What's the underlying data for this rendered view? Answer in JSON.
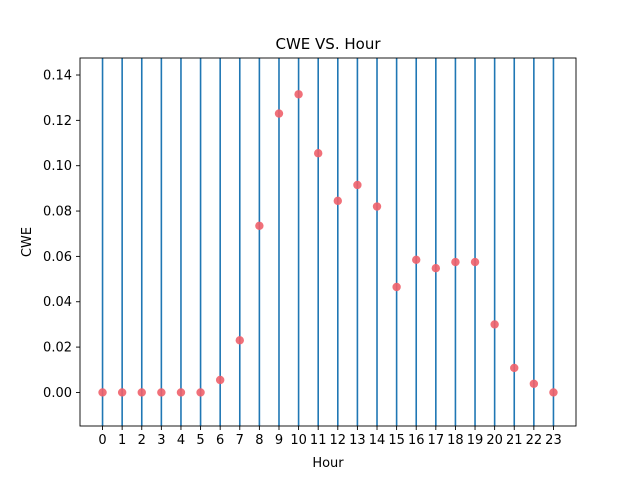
{
  "chart_data": {
    "type": "scatter",
    "title": "CWE VS. Hour",
    "xlabel": "Hour",
    "ylabel": "CWE",
    "x": [
      0,
      1,
      2,
      3,
      4,
      5,
      6,
      7,
      8,
      9,
      10,
      11,
      12,
      13,
      14,
      15,
      16,
      17,
      18,
      19,
      20,
      21,
      22,
      23
    ],
    "y": [
      0.0,
      0.0,
      0.0,
      0.0,
      0.0,
      0.0,
      0.0055,
      0.023,
      0.0735,
      0.123,
      0.1315,
      0.1055,
      0.0845,
      0.0915,
      0.082,
      0.0465,
      0.0585,
      0.0548,
      0.0575,
      0.0575,
      0.03,
      0.0108,
      0.0038,
      0.0
    ],
    "xticks": [
      "0",
      "1",
      "2",
      "3",
      "4",
      "5",
      "6",
      "7",
      "8",
      "9",
      "10",
      "11",
      "12",
      "13",
      "14",
      "15",
      "16",
      "17",
      "18",
      "19",
      "20",
      "21",
      "22",
      "23"
    ],
    "yticks": [
      "0.00",
      "0.02",
      "0.04",
      "0.06",
      "0.08",
      "0.10",
      "0.12",
      "0.14"
    ],
    "ylim": [
      -0.0148,
      0.1475
    ],
    "xlim": [
      -1.15,
      24.15
    ],
    "vertical_lines_at": [
      0,
      1,
      2,
      3,
      4,
      5,
      6,
      7,
      8,
      9,
      10,
      11,
      12,
      13,
      14,
      15,
      16,
      17,
      18,
      19,
      20,
      21,
      22,
      23
    ],
    "grid": false,
    "colors": {
      "points": "#f0606a",
      "lines": "#1f77b4",
      "axes": "#000000"
    }
  }
}
